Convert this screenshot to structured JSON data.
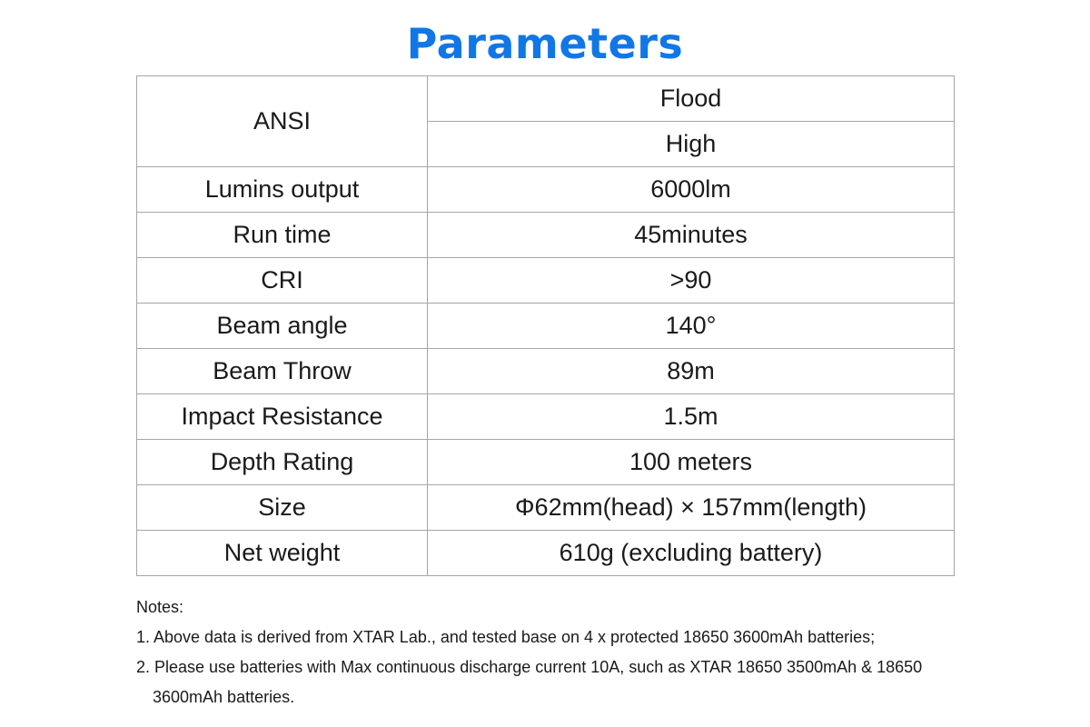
{
  "page": {
    "title": "Parameters",
    "title_color": "#1177e6"
  },
  "table": {
    "header_label": "ANSI",
    "mode_label": "Flood",
    "level_label": "High",
    "rows": [
      {
        "label": "Lumins output",
        "value": "6000lm"
      },
      {
        "label": "Run time",
        "value": "45minutes"
      },
      {
        "label": "CRI",
        "value": ">90"
      },
      {
        "label": "Beam angle",
        "value": "140°"
      },
      {
        "label": "Beam Throw",
        "value": "89m"
      },
      {
        "label": "Impact Resistance",
        "value": "1.5m"
      },
      {
        "label": "Depth Rating",
        "value": "100 meters"
      },
      {
        "label": "Size",
        "value": "Φ62mm(head) × 157mm(length)"
      },
      {
        "label": "Net weight",
        "value": "610g (excluding battery)"
      }
    ],
    "border_color": "#a6a6a6"
  },
  "notes": {
    "heading": "Notes:",
    "items": [
      "1. Above data is derived from XTAR Lab., and tested base on 4 x protected 18650 3600mAh batteries;",
      "2. Please use batteries with Max continuous discharge current 10A, such as XTAR 18650 3500mAh & 18650",
      "3600mAh batteries."
    ]
  }
}
